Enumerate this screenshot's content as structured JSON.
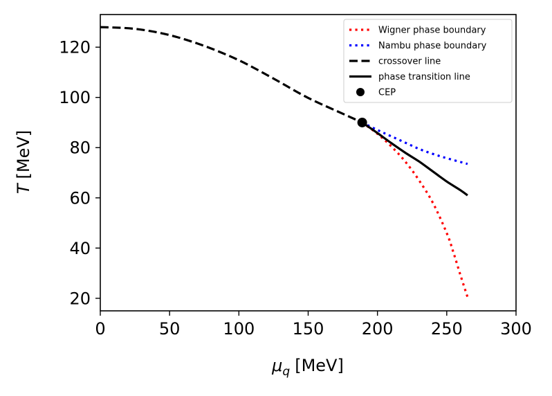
{
  "chart_data": {
    "type": "line",
    "title": "",
    "xlabel_symbol": "μ",
    "xlabel_subscript": "q",
    "xlabel_unit": "[MeV]",
    "ylabel_symbol": "T",
    "ylabel_unit": "[MeV]",
    "xlim": [
      0,
      300
    ],
    "ylim": [
      15,
      133
    ],
    "xticks": [
      0,
      50,
      100,
      150,
      200,
      250,
      300
    ],
    "yticks": [
      20,
      40,
      60,
      80,
      100,
      120
    ],
    "grid": false,
    "legend_position": "top-right",
    "series": [
      {
        "name": "Wigner phase boundary",
        "style": "dotted",
        "color": "#ff0000",
        "x": [
          189,
          200,
          210,
          220,
          230,
          240,
          250,
          255,
          260,
          265
        ],
        "y": [
          90,
          85.5,
          80.5,
          74.5,
          67,
          58,
          46,
          38,
          29,
          20.5
        ]
      },
      {
        "name": "Nambu phase boundary",
        "style": "dotted",
        "color": "#0000ff",
        "x": [
          189,
          200,
          210,
          220,
          230,
          240,
          250,
          265
        ],
        "y": [
          90,
          87,
          84.5,
          82,
          79.5,
          77.5,
          75.8,
          73.5
        ]
      },
      {
        "name": "crossover line",
        "style": "dashed",
        "color": "#000000",
        "x": [
          0,
          25,
          50,
          75,
          100,
          125,
          150,
          175,
          189
        ],
        "y": [
          128,
          127.3,
          124.8,
          120.5,
          114.8,
          107.5,
          99.8,
          93.5,
          90
        ]
      },
      {
        "name": "phase transition line",
        "style": "solid",
        "color": "#000000",
        "x": [
          189,
          200,
          210,
          220,
          230,
          240,
          250,
          260,
          265
        ],
        "y": [
          90,
          85.8,
          81.8,
          78,
          74.5,
          70.5,
          66.5,
          63,
          61
        ]
      }
    ],
    "points": [
      {
        "name": "CEP",
        "x": 189,
        "y": 90,
        "color": "#000000"
      }
    ]
  }
}
